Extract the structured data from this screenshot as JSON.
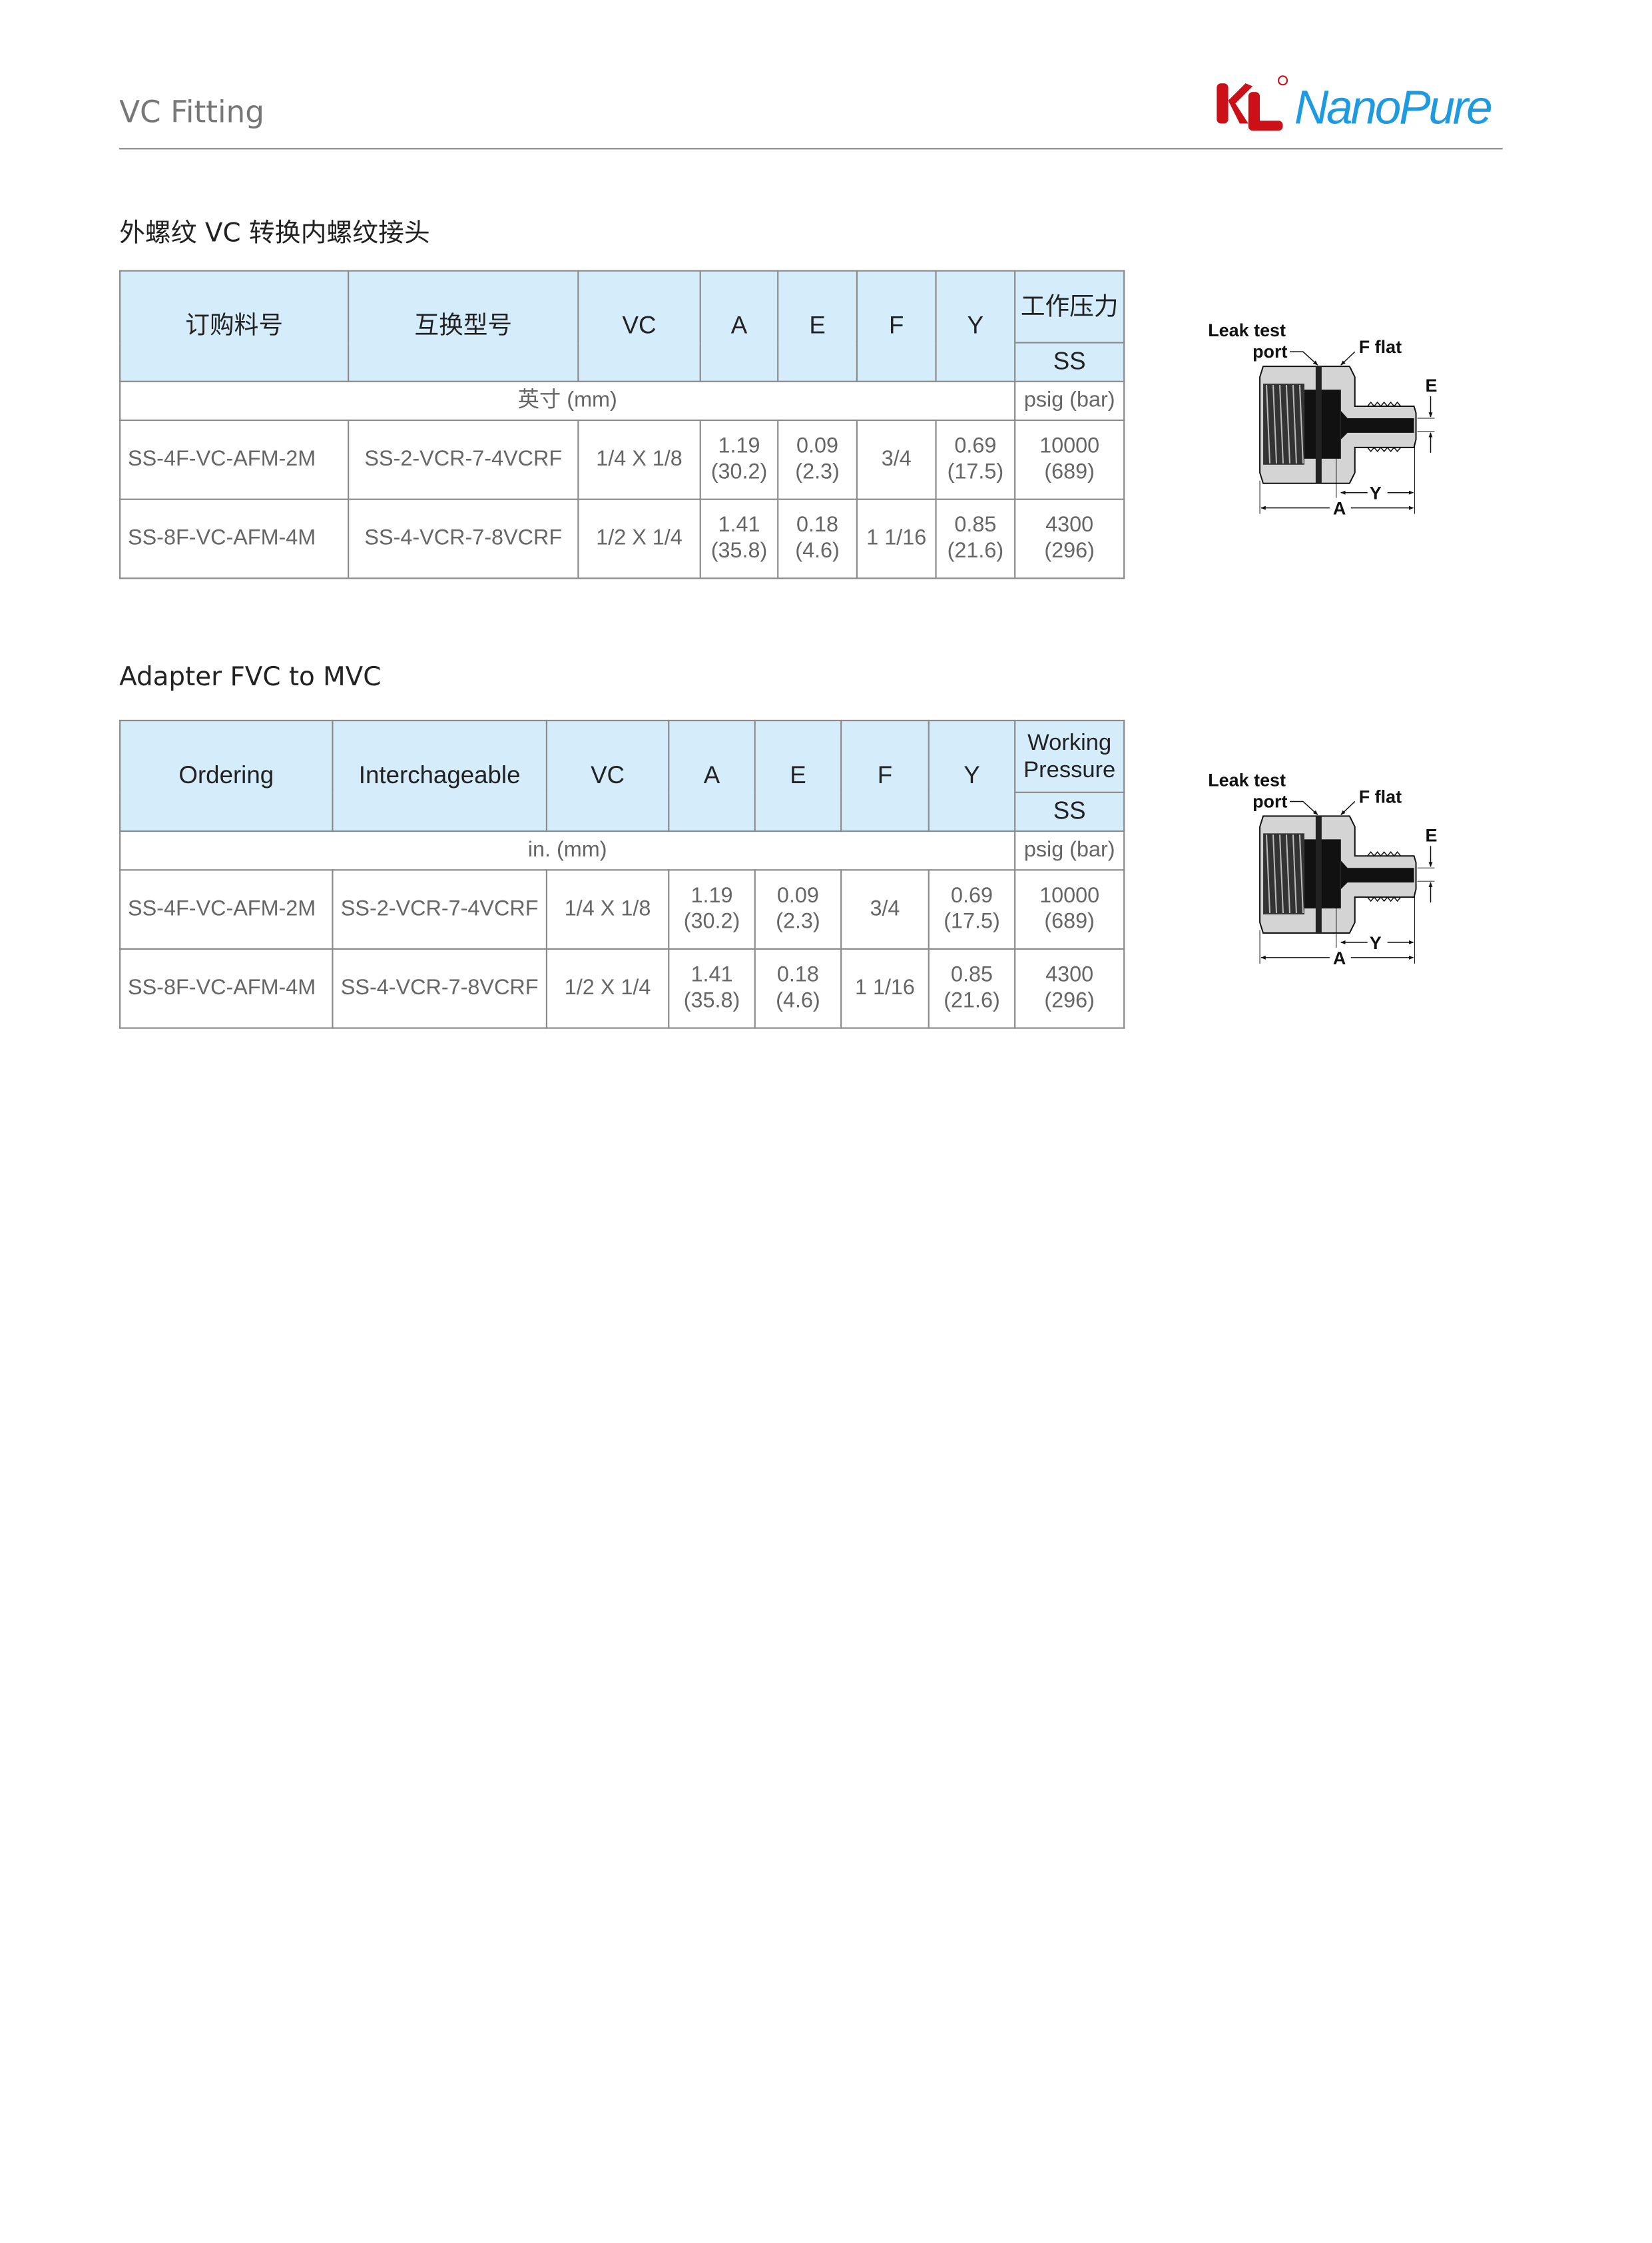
{
  "header": {
    "title": "VC Fitting",
    "logo_text": "KL NanoPure",
    "logo_nano": "NanoPure",
    "brand_red": "#cc1018",
    "brand_blue": "#1e9be0"
  },
  "sections": [
    {
      "title": "外螺纹 VC 转换内螺纹接头",
      "columns": [
        "订购料号",
        "互换型号",
        "VC",
        "A",
        "E",
        "F",
        "Y",
        "工作压力"
      ],
      "pressure_sub": "SS",
      "units_dim": "英寸 (mm)",
      "units_pressure": "psig (bar)",
      "rows": [
        {
          "ordering": "SS-4F-VC-AFM-2M",
          "interchangeable": "SS-2-VCR-7-4VCRF",
          "vc": "1/4 X 1/8",
          "a": [
            "1.19",
            "(30.2)"
          ],
          "e": [
            "0.09",
            "(2.3)"
          ],
          "f": "3/4",
          "y": [
            "0.69",
            "(17.5)"
          ],
          "p": [
            "10000",
            "(689)"
          ]
        },
        {
          "ordering": "SS-8F-VC-AFM-4M",
          "interchangeable": "SS-4-VCR-7-8VCRF",
          "vc": "1/2 X 1/4",
          "a": [
            "1.41",
            "(35.8)"
          ],
          "e": [
            "0.18",
            "(4.6)"
          ],
          "f": "1 1/16",
          "y": [
            "0.85",
            "(21.6)"
          ],
          "p": [
            "4300",
            "(296)"
          ]
        }
      ]
    },
    {
      "title": "Adapter FVC to MVC",
      "columns": [
        "Ordering",
        "Interchageable",
        "VC",
        "A",
        "E",
        "F",
        "Y",
        "Working Pressure"
      ],
      "pressure_sub": "SS",
      "units_dim": "in. (mm)",
      "units_pressure": "psig (bar)",
      "rows": [
        {
          "ordering": "SS-4F-VC-AFM-2M",
          "interchangeable": "SS-2-VCR-7-4VCRF",
          "vc": "1/4 X 1/8",
          "a": [
            "1.19",
            "(30.2)"
          ],
          "e": [
            "0.09",
            "(2.3)"
          ],
          "f": "3/4",
          "y": [
            "0.69",
            "(17.5)"
          ],
          "p": [
            "10000",
            "(689)"
          ]
        },
        {
          "ordering": "SS-8F-VC-AFM-4M",
          "interchangeable": "SS-4-VCR-7-8VCRF",
          "vc": "1/2 X 1/4",
          "a": [
            "1.41",
            "(35.8)"
          ],
          "e": [
            "0.18",
            "(4.6)"
          ],
          "f": "1 1/16",
          "y": [
            "0.85",
            "(21.6)"
          ],
          "p": [
            "4300",
            "(296)"
          ]
        }
      ]
    }
  ],
  "diagram": {
    "leak1": "Leak test",
    "leak2": "port",
    "fflat": "F flat",
    "e": "E",
    "y": "Y",
    "a": "A"
  }
}
